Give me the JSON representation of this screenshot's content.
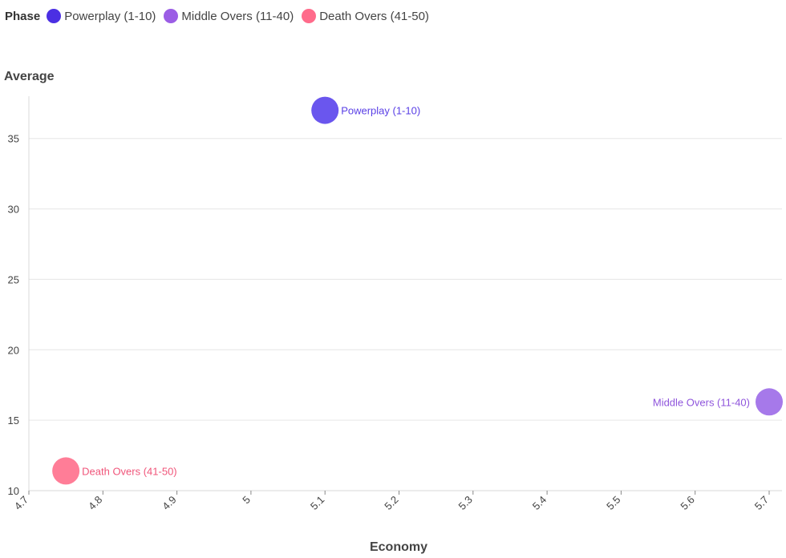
{
  "legend": {
    "title": "Phase",
    "items": [
      {
        "label": "Powerplay (1-10)",
        "color": "#4b2fe3"
      },
      {
        "label": "Middle Overs (11-40)",
        "color": "#9b5de5"
      },
      {
        "label": "Death Overs (41-50)",
        "color": "#ff6b8b"
      }
    ]
  },
  "chart_data": {
    "type": "scatter",
    "title": "",
    "xlabel": "Economy",
    "ylabel": "Average",
    "xlim": [
      4.7,
      5.7
    ],
    "ylim": [
      10,
      38
    ],
    "x_ticks": [
      "4.7",
      "4.8",
      "4.9",
      "5",
      "5.1",
      "5.2",
      "5.3",
      "5.4",
      "5.5",
      "5.6",
      "5.7"
    ],
    "y_ticks": [
      "10",
      "15",
      "20",
      "25",
      "30",
      "35"
    ],
    "grid": "horizontal",
    "legend_position": "top-left",
    "series": [
      {
        "name": "Powerplay (1-10)",
        "color": "#6a56ee",
        "label_color": "#5a40e6",
        "label_side": "right",
        "points": [
          {
            "x": 5.1,
            "y": 37.0,
            "label": "Powerplay (1-10)"
          }
        ]
      },
      {
        "name": "Middle Overs (11-40)",
        "color": "#a679ea",
        "label_color": "#8f55dc",
        "label_side": "left",
        "points": [
          {
            "x": 5.7,
            "y": 16.3,
            "label": "Middle Overs (11-40)"
          }
        ]
      },
      {
        "name": "Death Overs (41-50)",
        "color": "#ff7d97",
        "label_color": "#f0557a",
        "label_side": "right",
        "points": [
          {
            "x": 4.75,
            "y": 11.4,
            "label": "Death Overs (41-50)"
          }
        ]
      }
    ]
  }
}
